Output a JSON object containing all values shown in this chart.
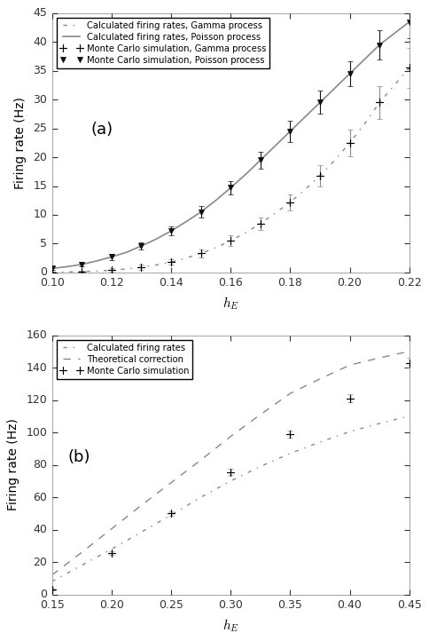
{
  "panel_a": {
    "xlim": [
      0.1,
      0.22
    ],
    "ylim": [
      0,
      45
    ],
    "xlabel": "h_E",
    "ylabel": "Firing rate (Hz)",
    "label": "(a)",
    "xticks": [
      0.1,
      0.12,
      0.14,
      0.16,
      0.18,
      0.2,
      0.22
    ],
    "yticks": [
      0,
      5,
      10,
      15,
      20,
      25,
      30,
      35,
      40,
      45
    ],
    "poisson_curve_x": [
      0.1,
      0.105,
      0.11,
      0.115,
      0.12,
      0.125,
      0.13,
      0.135,
      0.14,
      0.145,
      0.15,
      0.155,
      0.16,
      0.165,
      0.17,
      0.175,
      0.18,
      0.185,
      0.19,
      0.195,
      0.2,
      0.205,
      0.21,
      0.215,
      0.22
    ],
    "poisson_curve_y": [
      0.7,
      1.0,
      1.4,
      2.0,
      2.7,
      3.5,
      4.6,
      5.8,
      7.2,
      8.8,
      10.5,
      12.5,
      14.7,
      17.0,
      19.5,
      22.0,
      24.5,
      27.0,
      29.5,
      32.0,
      34.5,
      37.0,
      39.5,
      41.5,
      43.5
    ],
    "gamma_curve_x": [
      0.1,
      0.105,
      0.11,
      0.115,
      0.12,
      0.125,
      0.13,
      0.135,
      0.14,
      0.145,
      0.15,
      0.155,
      0.16,
      0.165,
      0.17,
      0.175,
      0.18,
      0.185,
      0.19,
      0.195,
      0.2,
      0.205,
      0.21,
      0.215,
      0.22
    ],
    "gamma_curve_y": [
      0.05,
      0.1,
      0.15,
      0.25,
      0.4,
      0.6,
      0.9,
      1.3,
      1.8,
      2.5,
      3.3,
      4.3,
      5.5,
      6.9,
      8.5,
      10.3,
      12.2,
      14.4,
      16.8,
      19.5,
      22.5,
      25.8,
      29.5,
      32.5,
      35.5
    ],
    "poisson_mc_x": [
      0.1,
      0.11,
      0.12,
      0.13,
      0.14,
      0.15,
      0.16,
      0.17,
      0.18,
      0.19,
      0.2,
      0.21,
      0.22
    ],
    "poisson_mc_y": [
      0.7,
      1.4,
      2.7,
      4.6,
      7.2,
      10.5,
      14.7,
      19.5,
      24.5,
      29.5,
      34.5,
      39.5,
      43.5
    ],
    "poisson_mc_yerr": [
      0.3,
      0.4,
      0.5,
      0.6,
      0.8,
      1.0,
      1.2,
      1.5,
      1.8,
      2.0,
      2.2,
      2.5,
      2.8
    ],
    "gamma_mc_x": [
      0.1,
      0.11,
      0.12,
      0.13,
      0.14,
      0.15,
      0.16,
      0.17,
      0.18,
      0.19,
      0.2,
      0.21,
      0.22
    ],
    "gamma_mc_y": [
      0.05,
      0.15,
      0.4,
      0.9,
      1.8,
      3.3,
      5.5,
      8.5,
      12.2,
      16.8,
      22.5,
      29.5,
      35.5
    ],
    "gamma_mc_yerr": [
      0.15,
      0.2,
      0.3,
      0.4,
      0.5,
      0.7,
      0.9,
      1.1,
      1.4,
      1.8,
      2.3,
      2.8,
      3.5
    ],
    "legend_entries": [
      "Calculated firing rates, Gamma process",
      "Calculated firing rates, Poisson process",
      "Monte Carlo simulation, Gamma process",
      "Monte Carlo simulation, Poisson process"
    ]
  },
  "panel_b": {
    "xlim": [
      0.15,
      0.45
    ],
    "ylim": [
      0,
      160
    ],
    "xlabel": "h_E",
    "ylabel": "Firing rate (Hz)",
    "label": "(b)",
    "xticks": [
      0.15,
      0.2,
      0.25,
      0.3,
      0.35,
      0.4,
      0.45
    ],
    "yticks": [
      0,
      20,
      40,
      60,
      80,
      100,
      120,
      140,
      160
    ],
    "calc_curve_x": [
      0.15,
      0.175,
      0.2,
      0.225,
      0.25,
      0.275,
      0.3,
      0.325,
      0.35,
      0.375,
      0.4,
      0.425,
      0.45
    ],
    "calc_curve_y": [
      8.0,
      18.0,
      28.0,
      38.5,
      49.0,
      60.0,
      70.0,
      79.0,
      87.0,
      94.0,
      100.5,
      105.5,
      110.0
    ],
    "theory_curve_x": [
      0.15,
      0.175,
      0.2,
      0.225,
      0.25,
      0.275,
      0.3,
      0.325,
      0.35,
      0.375,
      0.4,
      0.425,
      0.45
    ],
    "theory_curve_y": [
      12.0,
      26.0,
      40.5,
      55.0,
      69.0,
      83.0,
      97.5,
      111.0,
      124.0,
      133.0,
      141.5,
      146.0,
      150.0
    ],
    "mc_x": [
      0.15,
      0.2,
      0.25,
      0.3,
      0.35,
      0.4,
      0.45
    ],
    "mc_y": [
      3.0,
      25.5,
      50.0,
      75.5,
      99.0,
      121.0,
      143.0
    ],
    "mc_yerr": [
      0.5,
      1.0,
      1.5,
      2.0,
      2.0,
      2.5,
      3.0
    ],
    "legend_entries": [
      "Calculated firing rates",
      "Theoretical correction",
      "Monte Carlo simulation"
    ]
  },
  "color_dark": "#111111",
  "color_gray": "#777777",
  "color_line_gray": "#888888",
  "bg_color": "#ffffff"
}
